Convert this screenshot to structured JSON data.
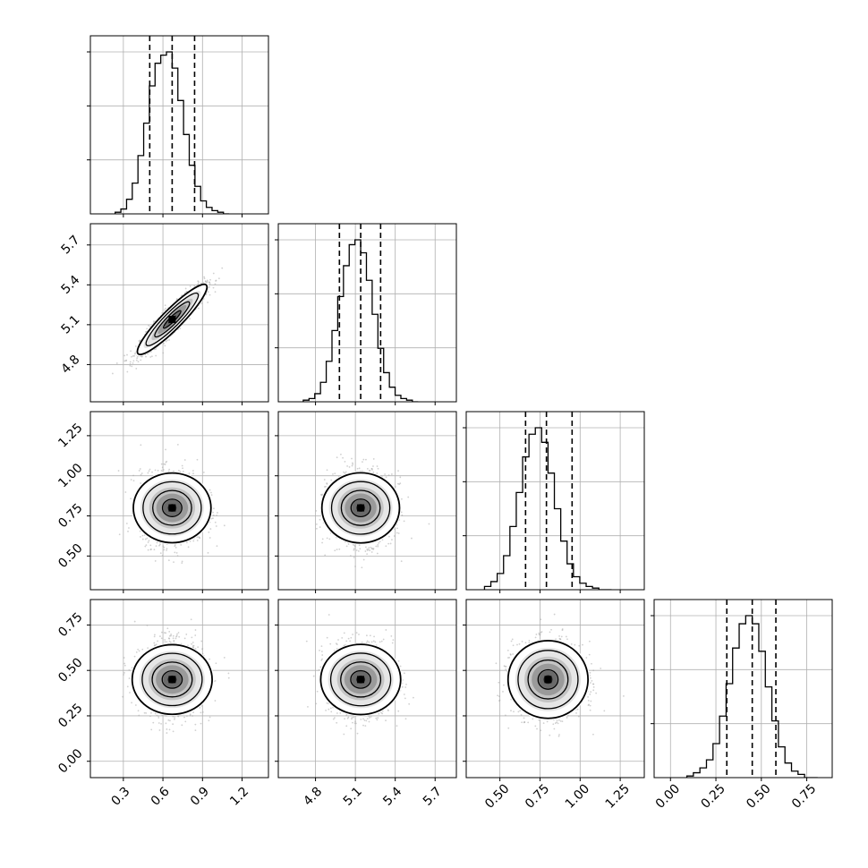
{
  "chart_data": {
    "type": "corner",
    "params": [
      {
        "range": [
          0.05,
          1.4
        ],
        "ticks": [
          0.3,
          0.6,
          0.9,
          1.2
        ],
        "tick_labels": [
          "0.3",
          "0.6",
          "0.9",
          "1.2"
        ],
        "quantiles": [
          0.5,
          0.67,
          0.84
        ],
        "median": 0.67,
        "sigma": 0.12
      },
      {
        "range": [
          4.52,
          5.86
        ],
        "ticks": [
          4.8,
          5.1,
          5.4,
          5.7
        ],
        "tick_labels": [
          "4.8",
          "5.1",
          "5.4",
          "5.7"
        ],
        "quantiles": [
          4.98,
          5.14,
          5.29
        ],
        "median": 5.14,
        "sigma": 0.12
      },
      {
        "range": [
          0.29,
          1.4
        ],
        "ticks": [
          0.5,
          0.75,
          1.0,
          1.25
        ],
        "tick_labels": [
          "0.50",
          "0.75",
          "1.00",
          "1.25"
        ],
        "quantiles": [
          0.66,
          0.79,
          0.95
        ],
        "median": 0.8,
        "sigma": 0.11
      },
      {
        "range": [
          -0.09,
          0.89
        ],
        "ticks": [
          0.0,
          0.25,
          0.5,
          0.75
        ],
        "tick_labels": [
          "0.00",
          "0.25",
          "0.50",
          "0.75"
        ],
        "quantiles": [
          0.31,
          0.45,
          0.58
        ],
        "median": 0.45,
        "sigma": 0.1
      }
    ],
    "correlations": [
      [
        1,
        0.92,
        0,
        0
      ],
      [
        0.92,
        1,
        0,
        0
      ],
      [
        0,
        0,
        1,
        0
      ],
      [
        0,
        0,
        0,
        1
      ]
    ],
    "histogram_bins": 20,
    "histograms": [
      [
        0.01,
        0.03,
        0.09,
        0.19,
        0.36,
        0.56,
        0.79,
        0.93,
        0.98,
        1.0,
        0.9,
        0.7,
        0.49,
        0.3,
        0.17,
        0.08,
        0.04,
        0.02,
        0.01,
        0.0
      ],
      [
        0.01,
        0.02,
        0.05,
        0.12,
        0.25,
        0.44,
        0.65,
        0.84,
        0.97,
        1.0,
        0.92,
        0.75,
        0.54,
        0.33,
        0.18,
        0.09,
        0.04,
        0.02,
        0.01,
        0.0
      ],
      [
        0.02,
        0.05,
        0.1,
        0.21,
        0.39,
        0.6,
        0.82,
        0.96,
        1.0,
        0.91,
        0.72,
        0.5,
        0.3,
        0.16,
        0.08,
        0.04,
        0.02,
        0.01,
        0.0,
        0.0
      ],
      [
        0.01,
        0.03,
        0.06,
        0.11,
        0.21,
        0.38,
        0.58,
        0.8,
        0.95,
        1.0,
        0.95,
        0.78,
        0.56,
        0.35,
        0.19,
        0.09,
        0.04,
        0.02,
        0.0,
        0.0
      ]
    ],
    "contour_levels_sigma": [
      0.5,
      1.0,
      1.5,
      2.0
    ],
    "grid": true,
    "xlabels": [
      "",
      "",
      "",
      ""
    ],
    "ylabels": [
      "",
      "",
      "",
      ""
    ]
  }
}
